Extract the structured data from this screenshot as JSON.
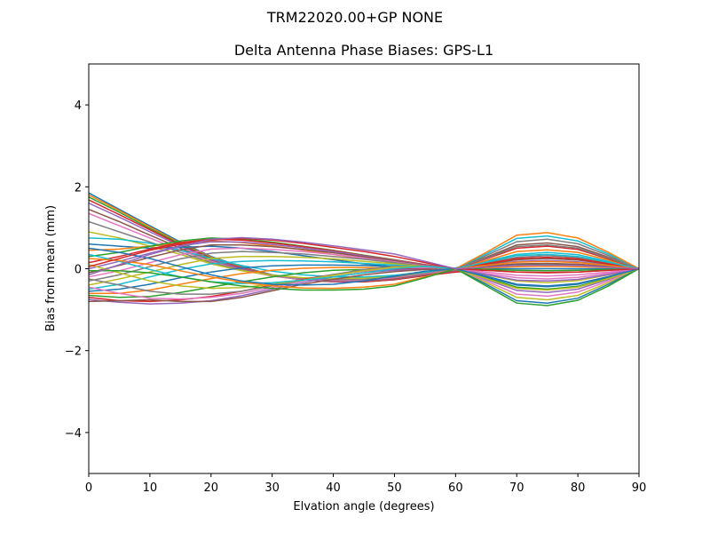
{
  "figure": {
    "suptitle": "TRM22020.00+GP  NONE",
    "title": "Delta Antenna Phase Biases: GPS-L1"
  },
  "chart_data": {
    "type": "line",
    "title": "Delta Antenna Phase Biases: GPS-L1",
    "suptitle": "TRM22020.00+GP  NONE",
    "xlabel": "Elvation angle (degrees)",
    "ylabel": "Bias from mean (mm)",
    "xlim": [
      0,
      90
    ],
    "ylim": [
      -5,
      5
    ],
    "xticks": [
      0,
      10,
      20,
      30,
      40,
      50,
      60,
      70,
      80,
      90
    ],
    "yticks": [
      -4,
      -2,
      0,
      2,
      4
    ],
    "ytick_labels": [
      "−4",
      "−2",
      "0",
      "2",
      "4"
    ],
    "grid": false,
    "legend": "none",
    "color_cycle": [
      "#1f77b4",
      "#ff7f0e",
      "#2ca02c",
      "#d62728",
      "#9467bd",
      "#8c564b",
      "#e377c2",
      "#7f7f7f",
      "#bcbd22",
      "#17becf"
    ],
    "x": [
      0,
      5,
      10,
      15,
      20,
      25,
      30,
      35,
      40,
      45,
      50,
      55,
      60,
      65,
      70,
      75,
      80,
      85,
      90
    ],
    "series": [
      {
        "name": "s01",
        "values": [
          1.85,
          1.45,
          1.05,
          0.65,
          0.3,
          0.05,
          -0.15,
          -0.25,
          -0.3,
          -0.3,
          -0.25,
          -0.15,
          -0.05,
          0.0,
          0.0,
          0.0,
          0.0,
          0.0,
          0.0
        ]
      },
      {
        "name": "s02",
        "values": [
          1.8,
          1.42,
          1.02,
          0.62,
          0.28,
          0.03,
          -0.16,
          -0.26,
          -0.31,
          -0.31,
          -0.26,
          -0.16,
          -0.06,
          0.02,
          0.05,
          0.06,
          0.05,
          0.03,
          0.0
        ]
      },
      {
        "name": "s03",
        "values": [
          1.75,
          1.38,
          0.98,
          0.6,
          0.26,
          0.02,
          -0.17,
          -0.27,
          -0.32,
          -0.32,
          -0.27,
          -0.17,
          -0.08,
          0.04,
          0.1,
          0.12,
          0.1,
          0.05,
          0.0
        ]
      },
      {
        "name": "s04",
        "values": [
          1.68,
          1.32,
          0.95,
          0.58,
          0.25,
          0.02,
          -0.17,
          -0.27,
          -0.32,
          -0.32,
          -0.27,
          -0.17,
          -0.08,
          -0.04,
          -0.08,
          -0.1,
          -0.08,
          -0.04,
          0.0
        ]
      },
      {
        "name": "s05",
        "values": [
          1.6,
          1.26,
          0.9,
          0.55,
          0.23,
          0.0,
          -0.17,
          -0.27,
          -0.31,
          -0.3,
          -0.25,
          -0.15,
          -0.05,
          0.08,
          0.18,
          0.2,
          0.17,
          0.09,
          0.0
        ]
      },
      {
        "name": "s06",
        "values": [
          1.45,
          1.15,
          0.82,
          0.5,
          0.2,
          -0.02,
          -0.18,
          -0.27,
          -0.3,
          -0.29,
          -0.24,
          -0.14,
          -0.04,
          0.1,
          0.22,
          0.25,
          0.21,
          0.11,
          0.0
        ]
      },
      {
        "name": "s07",
        "values": [
          1.35,
          1.05,
          0.75,
          0.45,
          0.18,
          -0.03,
          -0.18,
          -0.26,
          -0.29,
          -0.28,
          -0.22,
          -0.12,
          -0.02,
          -0.12,
          -0.22,
          -0.25,
          -0.21,
          -0.11,
          0.0
        ]
      },
      {
        "name": "s08",
        "values": [
          1.15,
          0.9,
          0.65,
          0.4,
          0.15,
          -0.04,
          -0.17,
          -0.24,
          -0.27,
          -0.26,
          -0.2,
          -0.1,
          0.0,
          0.14,
          0.28,
          0.32,
          0.27,
          0.14,
          0.0
        ]
      },
      {
        "name": "s09",
        "values": [
          0.9,
          0.75,
          0.55,
          0.35,
          0.12,
          -0.05,
          -0.16,
          -0.22,
          -0.24,
          -0.23,
          -0.18,
          -0.08,
          0.02,
          -0.15,
          -0.3,
          -0.34,
          -0.29,
          -0.15,
          0.0
        ]
      },
      {
        "name": "s10",
        "values": [
          0.75,
          0.72,
          0.62,
          0.45,
          0.25,
          0.08,
          -0.06,
          -0.15,
          -0.2,
          -0.2,
          -0.16,
          -0.08,
          0.02,
          0.18,
          0.35,
          0.4,
          0.34,
          0.18,
          0.0
        ]
      },
      {
        "name": "s11",
        "values": [
          0.6,
          0.55,
          0.5,
          0.52,
          0.55,
          0.5,
          0.42,
          0.32,
          0.22,
          0.12,
          0.05,
          0.0,
          0.0,
          -0.18,
          -0.38,
          -0.42,
          -0.36,
          -0.19,
          0.0
        ]
      },
      {
        "name": "s12",
        "values": [
          0.45,
          0.48,
          0.55,
          0.62,
          0.68,
          0.64,
          0.56,
          0.46,
          0.35,
          0.24,
          0.14,
          0.05,
          0.0,
          0.2,
          0.42,
          0.46,
          0.4,
          0.21,
          0.0
        ]
      },
      {
        "name": "s13",
        "values": [
          0.3,
          0.4,
          0.55,
          0.68,
          0.75,
          0.72,
          0.65,
          0.55,
          0.45,
          0.33,
          0.22,
          0.1,
          0.0,
          -0.22,
          -0.45,
          -0.5,
          -0.43,
          -0.22,
          0.0
        ]
      },
      {
        "name": "s14",
        "values": [
          0.15,
          0.3,
          0.48,
          0.64,
          0.72,
          0.7,
          0.63,
          0.54,
          0.44,
          0.32,
          0.21,
          0.1,
          0.0,
          0.24,
          0.5,
          0.55,
          0.47,
          0.24,
          0.0
        ]
      },
      {
        "name": "s15",
        "values": [
          0.0,
          0.18,
          0.38,
          0.56,
          0.66,
          0.65,
          0.59,
          0.51,
          0.42,
          0.31,
          0.2,
          0.09,
          0.0,
          -0.26,
          -0.53,
          -0.58,
          -0.5,
          -0.26,
          0.0
        ]
      },
      {
        "name": "s16",
        "values": [
          -0.1,
          0.08,
          0.28,
          0.46,
          0.58,
          0.58,
          0.54,
          0.47,
          0.39,
          0.29,
          0.19,
          0.08,
          0.0,
          0.28,
          0.58,
          0.63,
          0.54,
          0.28,
          0.0
        ]
      },
      {
        "name": "s17",
        "values": [
          -0.2,
          -0.05,
          0.15,
          0.34,
          0.48,
          0.5,
          0.47,
          0.42,
          0.35,
          0.26,
          0.17,
          0.07,
          0.0,
          -0.3,
          -0.62,
          -0.67,
          -0.57,
          -0.3,
          0.0
        ]
      },
      {
        "name": "s18",
        "values": [
          -0.3,
          -0.15,
          0.05,
          0.24,
          0.38,
          0.42,
          0.4,
          0.36,
          0.3,
          0.23,
          0.15,
          0.06,
          0.0,
          0.32,
          0.66,
          0.72,
          0.61,
          0.32,
          0.0
        ]
      },
      {
        "name": "s19",
        "values": [
          -0.4,
          -0.25,
          -0.08,
          0.1,
          0.25,
          0.3,
          0.3,
          0.28,
          0.24,
          0.18,
          0.12,
          0.05,
          0.0,
          -0.34,
          -0.7,
          -0.76,
          -0.65,
          -0.34,
          0.0
        ]
      },
      {
        "name": "s20",
        "values": [
          -0.5,
          -0.38,
          -0.2,
          -0.02,
          0.12,
          0.18,
          0.2,
          0.19,
          0.17,
          0.13,
          0.09,
          0.04,
          0.0,
          0.36,
          0.74,
          0.8,
          0.68,
          0.36,
          0.0
        ]
      },
      {
        "name": "s21",
        "values": [
          -0.55,
          -0.5,
          -0.38,
          -0.22,
          -0.08,
          0.02,
          0.07,
          0.09,
          0.09,
          0.08,
          0.05,
          0.02,
          0.0,
          -0.38,
          -0.78,
          -0.84,
          -0.72,
          -0.38,
          0.0
        ]
      },
      {
        "name": "s22",
        "values": [
          -0.6,
          -0.6,
          -0.52,
          -0.38,
          -0.24,
          -0.12,
          -0.04,
          0.01,
          0.03,
          0.03,
          0.02,
          0.01,
          0.0,
          0.4,
          0.82,
          0.88,
          0.75,
          0.4,
          0.0
        ]
      },
      {
        "name": "s23",
        "values": [
          -0.65,
          -0.7,
          -0.68,
          -0.58,
          -0.45,
          -0.32,
          -0.2,
          -0.1,
          -0.04,
          -0.02,
          -0.01,
          0.0,
          0.0,
          -0.42,
          -0.84,
          -0.9,
          -0.77,
          -0.42,
          0.0
        ]
      },
      {
        "name": "s24",
        "values": [
          -0.7,
          -0.78,
          -0.8,
          -0.76,
          -0.68,
          -0.55,
          -0.4,
          -0.26,
          -0.14,
          -0.06,
          -0.02,
          0.0,
          0.0,
          0.12,
          0.25,
          0.28,
          0.24,
          0.12,
          0.0
        ]
      },
      {
        "name": "s25",
        "values": [
          -0.75,
          -0.82,
          -0.86,
          -0.84,
          -0.78,
          -0.66,
          -0.5,
          -0.34,
          -0.2,
          -0.1,
          -0.04,
          -0.01,
          0.0,
          -0.14,
          -0.28,
          -0.3,
          -0.26,
          -0.14,
          0.0
        ]
      },
      {
        "name": "s26",
        "values": [
          -0.8,
          -0.78,
          -0.76,
          -0.8,
          -0.8,
          -0.7,
          -0.54,
          -0.38,
          -0.26,
          -0.15,
          -0.07,
          -0.02,
          0.0,
          0.06,
          0.12,
          0.13,
          0.11,
          0.06,
          0.0
        ]
      },
      {
        "name": "s27",
        "values": [
          -0.45,
          -0.6,
          -0.72,
          -0.74,
          -0.7,
          -0.6,
          -0.46,
          -0.3,
          -0.16,
          -0.06,
          0.02,
          0.03,
          0.0,
          -0.08,
          -0.16,
          -0.18,
          -0.15,
          -0.08,
          0.0
        ]
      },
      {
        "name": "s28",
        "values": [
          -0.25,
          -0.4,
          -0.55,
          -0.62,
          -0.62,
          -0.55,
          -0.42,
          -0.28,
          -0.14,
          -0.02,
          0.06,
          0.05,
          0.0,
          0.26,
          0.54,
          0.58,
          0.5,
          0.26,
          0.0
        ]
      },
      {
        "name": "s29",
        "values": [
          0.1,
          -0.1,
          -0.3,
          -0.42,
          -0.48,
          -0.46,
          -0.38,
          -0.28,
          -0.16,
          -0.05,
          0.04,
          0.06,
          0.0,
          -0.24,
          -0.48,
          -0.52,
          -0.45,
          -0.24,
          0.0
        ]
      },
      {
        "name": "s30",
        "values": [
          0.35,
          0.18,
          -0.02,
          -0.2,
          -0.32,
          -0.36,
          -0.34,
          -0.28,
          -0.2,
          -0.1,
          0.0,
          0.06,
          0.0,
          0.16,
          0.32,
          0.35,
          0.3,
          0.16,
          0.0
        ]
      },
      {
        "name": "s31",
        "values": [
          0.5,
          0.4,
          0.25,
          0.05,
          -0.15,
          -0.3,
          -0.38,
          -0.4,
          -0.38,
          -0.3,
          -0.18,
          -0.06,
          0.0,
          -0.2,
          -0.4,
          -0.44,
          -0.38,
          -0.2,
          0.0
        ]
      },
      {
        "name": "s32",
        "values": [
          0.25,
          0.2,
          0.1,
          -0.05,
          -0.2,
          -0.33,
          -0.42,
          -0.47,
          -0.48,
          -0.45,
          -0.38,
          -0.2,
          0.0,
          0.08,
          0.16,
          0.18,
          0.15,
          0.08,
          0.0
        ]
      },
      {
        "name": "s33",
        "values": [
          -0.05,
          -0.05,
          -0.1,
          -0.2,
          -0.32,
          -0.42,
          -0.48,
          -0.52,
          -0.52,
          -0.5,
          -0.42,
          -0.22,
          0.0,
          -0.02,
          -0.04,
          -0.05,
          -0.04,
          -0.02,
          0.0
        ]
      },
      {
        "name": "s34",
        "values": [
          0.05,
          0.25,
          0.45,
          0.6,
          0.7,
          0.74,
          0.7,
          0.62,
          0.52,
          0.42,
          0.3,
          0.15,
          0.0,
          -0.04,
          -0.08,
          -0.09,
          -0.08,
          -0.04,
          0.0
        ]
      },
      {
        "name": "s35",
        "values": [
          -0.15,
          0.1,
          0.35,
          0.55,
          0.72,
          0.76,
          0.72,
          0.65,
          0.56,
          0.46,
          0.36,
          0.18,
          0.0,
          0.04,
          0.08,
          0.09,
          0.08,
          0.04,
          0.0
        ]
      }
    ]
  }
}
